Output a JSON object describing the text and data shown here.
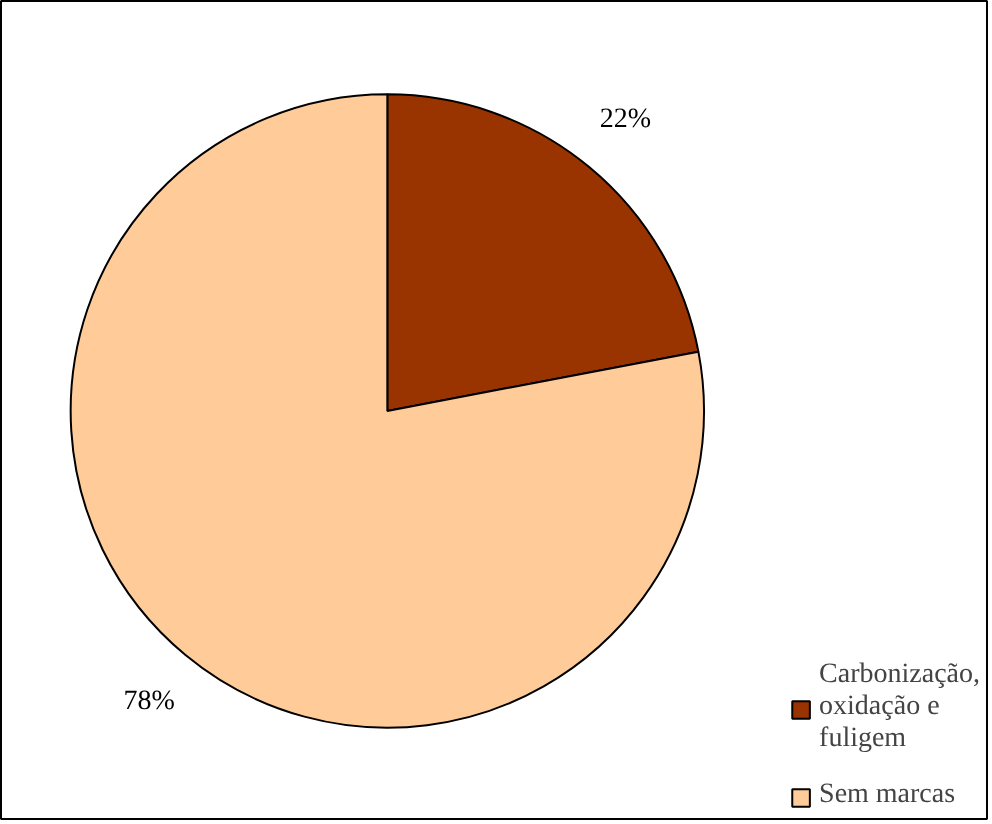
{
  "chart_data": {
    "type": "pie",
    "categories": [
      "Carbonização, oxidação e fuligem",
      "Sem marcas"
    ],
    "values": [
      22,
      78
    ],
    "colors": [
      "#993300",
      "#ffcc99"
    ],
    "value_labels": [
      "22%",
      "78%"
    ],
    "legend": "bottom right"
  }
}
